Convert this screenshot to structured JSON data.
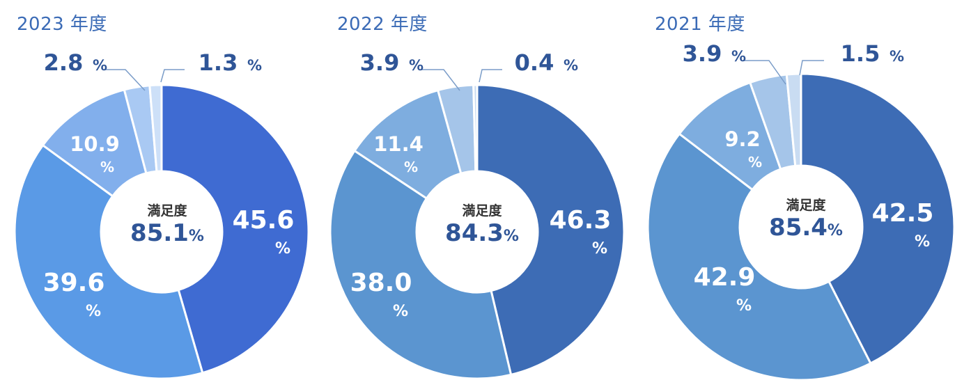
{
  "colors": {
    "title": "#3b6bb6",
    "outside_label": "#2f5597",
    "inside_label": "#ffffff",
    "slice_border": "#ffffff"
  },
  "chart_data": [
    {
      "type": "pie",
      "title": "2023 年度",
      "center_caption": "満足度",
      "center_value": "85.1",
      "center_unit": "%",
      "unit": "%",
      "values": [
        45.6,
        39.6,
        10.9,
        2.8,
        1.3
      ],
      "labels": [
        "45.6",
        "39.6",
        "10.9",
        "2.8",
        "1.3"
      ],
      "colors": [
        "#3f6bd2",
        "#5a9ae6",
        "#82afec",
        "#a9c9f3",
        "#cde0f8"
      ]
    },
    {
      "type": "pie",
      "title": "2022 年度",
      "center_caption": "満足度",
      "center_value": "84.3",
      "center_unit": "%",
      "unit": "%",
      "values": [
        46.3,
        38.0,
        11.4,
        3.9,
        0.4
      ],
      "labels": [
        "46.3",
        "38.0",
        "11.4",
        "3.9",
        "0.4"
      ],
      "colors": [
        "#3d6cb5",
        "#5b95d0",
        "#7eaddf",
        "#a5c5e9",
        "#c9dcf2"
      ]
    },
    {
      "type": "pie",
      "title": "2021 年度",
      "center_caption": "満足度",
      "center_value": "85.4",
      "center_unit": "%",
      "unit": "%",
      "values": [
        42.5,
        42.9,
        9.2,
        3.9,
        1.5
      ],
      "labels": [
        "42.5",
        "42.9",
        "9.2",
        "3.9",
        "1.5"
      ],
      "colors": [
        "#3d6cb5",
        "#5b95d0",
        "#7eaddf",
        "#a5c5e9",
        "#c9dcf2"
      ]
    }
  ]
}
